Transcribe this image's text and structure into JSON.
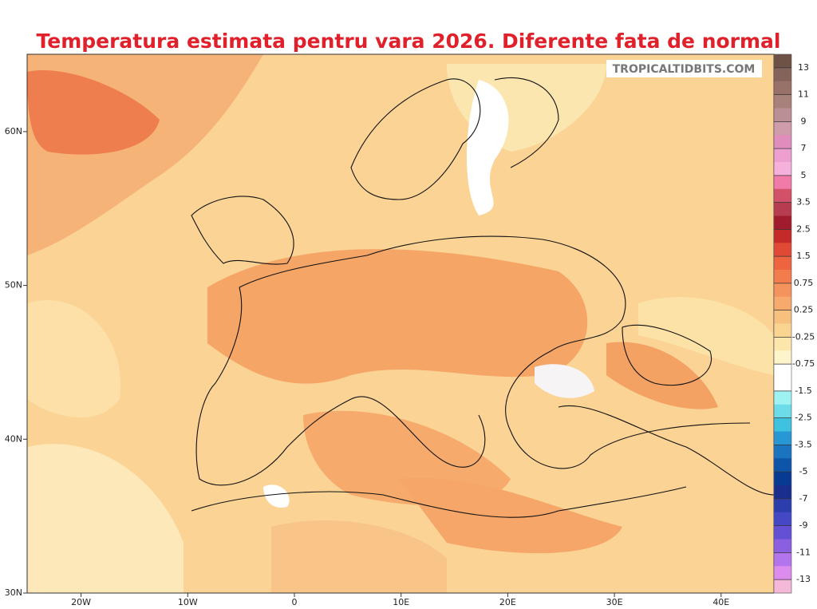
{
  "title": "Temperatura estimata pentru vara 2026. Diferente fata de normal",
  "watermark": "TROPICALTIDBITS.COM",
  "lat_ticks": [
    {
      "value": 60,
      "label": "60N"
    },
    {
      "value": 50,
      "label": "50N"
    },
    {
      "value": 40,
      "label": "40N"
    },
    {
      "value": 30,
      "label": "30N"
    }
  ],
  "lon_ticks": [
    {
      "value": -20,
      "label": "20W"
    },
    {
      "value": -10,
      "label": "10W"
    },
    0,
    {
      "value": 10,
      "label": "10E"
    },
    {
      "value": 20,
      "label": "20E"
    },
    {
      "value": 30,
      "label": "30E"
    },
    {
      "value": 40,
      "label": "40E"
    }
  ],
  "colorbar": {
    "levels": [
      13,
      11,
      9,
      7,
      5,
      3.5,
      2.5,
      1.5,
      0.75,
      0.25,
      -0.25,
      -0.75,
      -1.5,
      -2.5,
      -3.5,
      -5,
      -7,
      -9,
      -11,
      -13
    ],
    "colors": [
      "#6e5246",
      "#84645a",
      "#987268",
      "#a8827a",
      "#bb8f94",
      "#cf9cac",
      "#e08cbc",
      "#ec9fd0",
      "#f6b0dc",
      "#f07aa8",
      "#d25068",
      "#b83c50",
      "#a01c2c",
      "#c42a2a",
      "#e04a34",
      "#ee6440",
      "#f27c4c",
      "#f4945c",
      "#f6aa6c",
      "#f8c07e",
      "#fad592",
      "#fce6ac",
      "#fef4cc",
      "#ffffff",
      "#ffffff",
      "#9ef2f2",
      "#6edce8",
      "#3ec2e0",
      "#2898d4",
      "#1a74c0",
      "#0e54a8",
      "#083a94",
      "#1a2e8e",
      "#2c3eac",
      "#4448c4",
      "#6450d4",
      "#8a60e0",
      "#b474ec",
      "#dc8cec",
      "#f4b8d8"
    ]
  }
}
